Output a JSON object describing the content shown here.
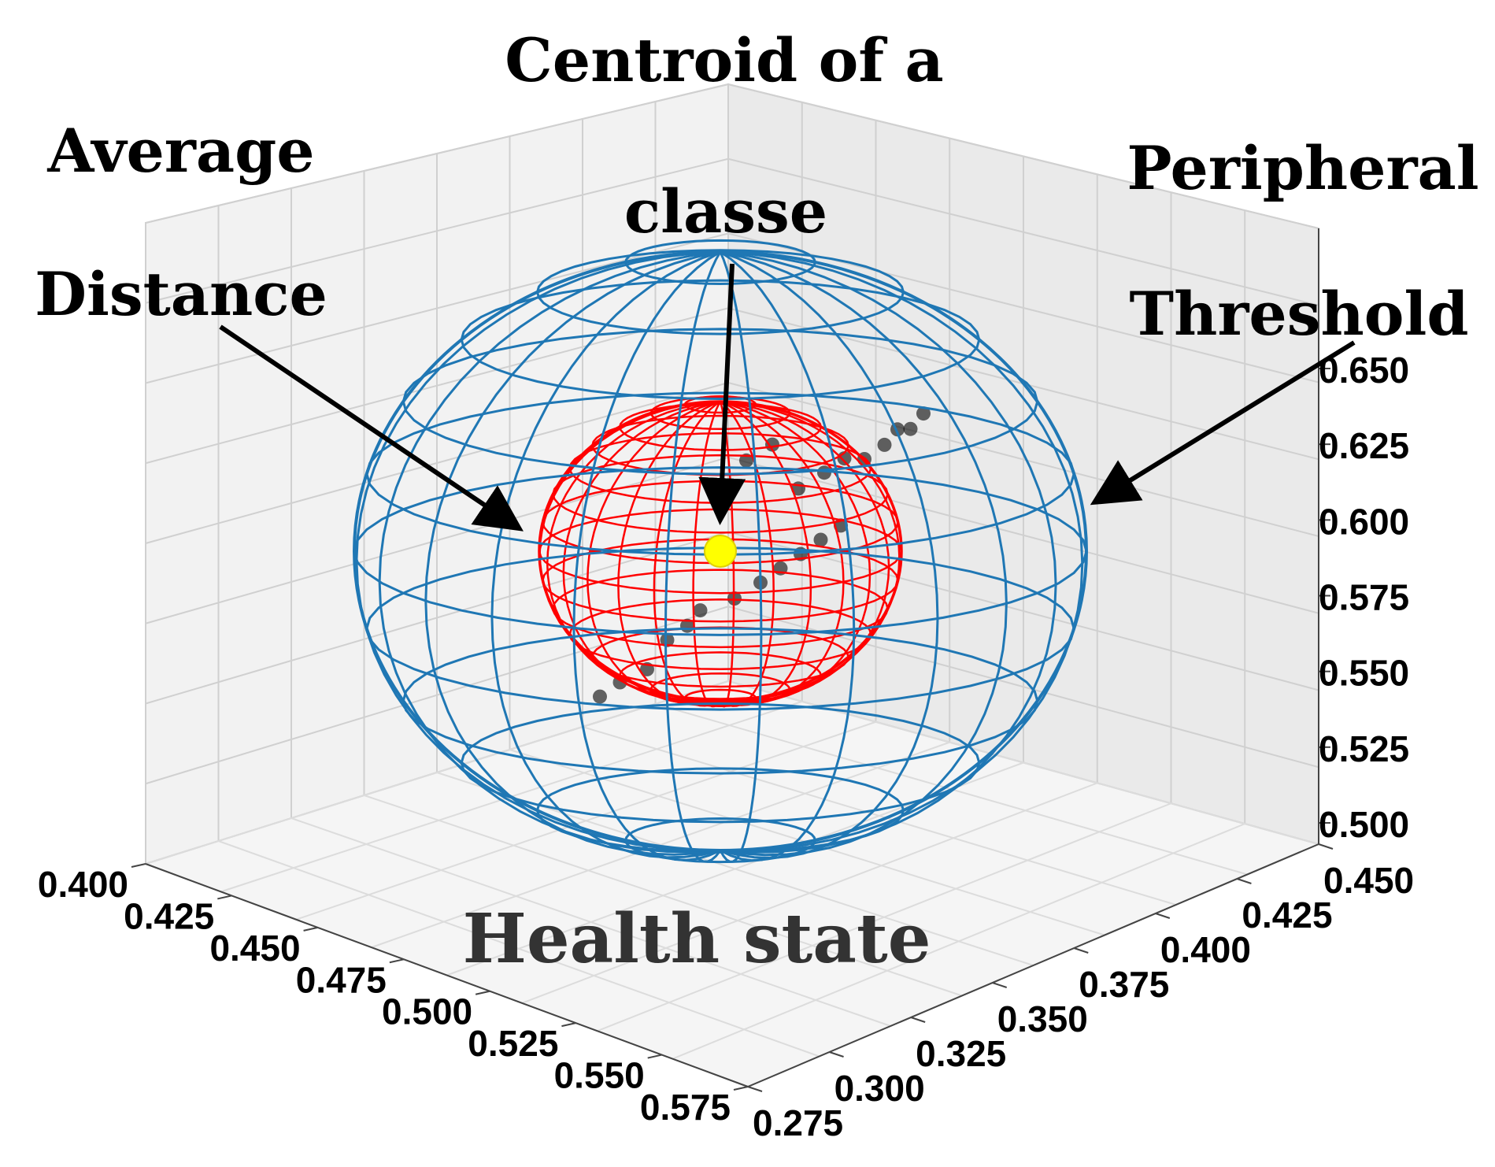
{
  "chart_data": {
    "type": "scatter",
    "projection": "3d",
    "title": "",
    "xlabel": "",
    "ylabel": "",
    "zlabel": "",
    "x_ticks": [
      "0.400",
      "0.425",
      "0.450",
      "0.475",
      "0.500",
      "0.525",
      "0.550",
      "0.575"
    ],
    "y_ticks": [
      "0.275",
      "0.300",
      "0.325",
      "0.350",
      "0.375",
      "0.400",
      "0.425",
      "0.450"
    ],
    "z_ticks": [
      "0.500",
      "0.525",
      "0.550",
      "0.575",
      "0.600",
      "0.625",
      "0.650"
    ],
    "xlim": [
      0.4,
      0.575
    ],
    "ylim": [
      0.275,
      0.45
    ],
    "zlim": [
      0.5,
      0.65
    ],
    "grid": true,
    "colors": {
      "outer_sphere": "#1f77b4",
      "inner_sphere": "#ff0000",
      "centroid": "#ffff00",
      "points": "#000000"
    },
    "centroid": {
      "x": 0.49,
      "y": 0.36,
      "z": 0.59
    },
    "points": [
      {
        "x": 0.43,
        "y": 0.33,
        "z": 0.54
      },
      {
        "x": 0.44,
        "y": 0.335,
        "z": 0.545
      },
      {
        "x": 0.455,
        "y": 0.34,
        "z": 0.55
      },
      {
        "x": 0.465,
        "y": 0.345,
        "z": 0.56
      },
      {
        "x": 0.475,
        "y": 0.35,
        "z": 0.565
      },
      {
        "x": 0.48,
        "y": 0.355,
        "z": 0.57
      },
      {
        "x": 0.5,
        "y": 0.36,
        "z": 0.575
      },
      {
        "x": 0.51,
        "y": 0.37,
        "z": 0.58
      },
      {
        "x": 0.52,
        "y": 0.375,
        "z": 0.585
      },
      {
        "x": 0.53,
        "y": 0.38,
        "z": 0.59
      },
      {
        "x": 0.54,
        "y": 0.385,
        "z": 0.595
      },
      {
        "x": 0.55,
        "y": 0.39,
        "z": 0.6
      },
      {
        "x": 0.52,
        "y": 0.39,
        "z": 0.61
      },
      {
        "x": 0.53,
        "y": 0.4,
        "z": 0.615
      },
      {
        "x": 0.54,
        "y": 0.405,
        "z": 0.62
      },
      {
        "x": 0.55,
        "y": 0.41,
        "z": 0.62
      },
      {
        "x": 0.56,
        "y": 0.415,
        "z": 0.625
      },
      {
        "x": 0.565,
        "y": 0.42,
        "z": 0.63
      },
      {
        "x": 0.57,
        "y": 0.425,
        "z": 0.63
      },
      {
        "x": 0.575,
        "y": 0.43,
        "z": 0.635
      },
      {
        "x": 0.5,
        "y": 0.37,
        "z": 0.62
      },
      {
        "x": 0.51,
        "y": 0.38,
        "z": 0.625
      }
    ],
    "annotations": {
      "centroid_line1": "Centroid of a",
      "centroid_line2": "classe",
      "avg_line1": "Average",
      "avg_line2": "Distance",
      "periph_line1": "Peripheral",
      "periph_line2": "Threshold",
      "region": "Health state"
    }
  }
}
